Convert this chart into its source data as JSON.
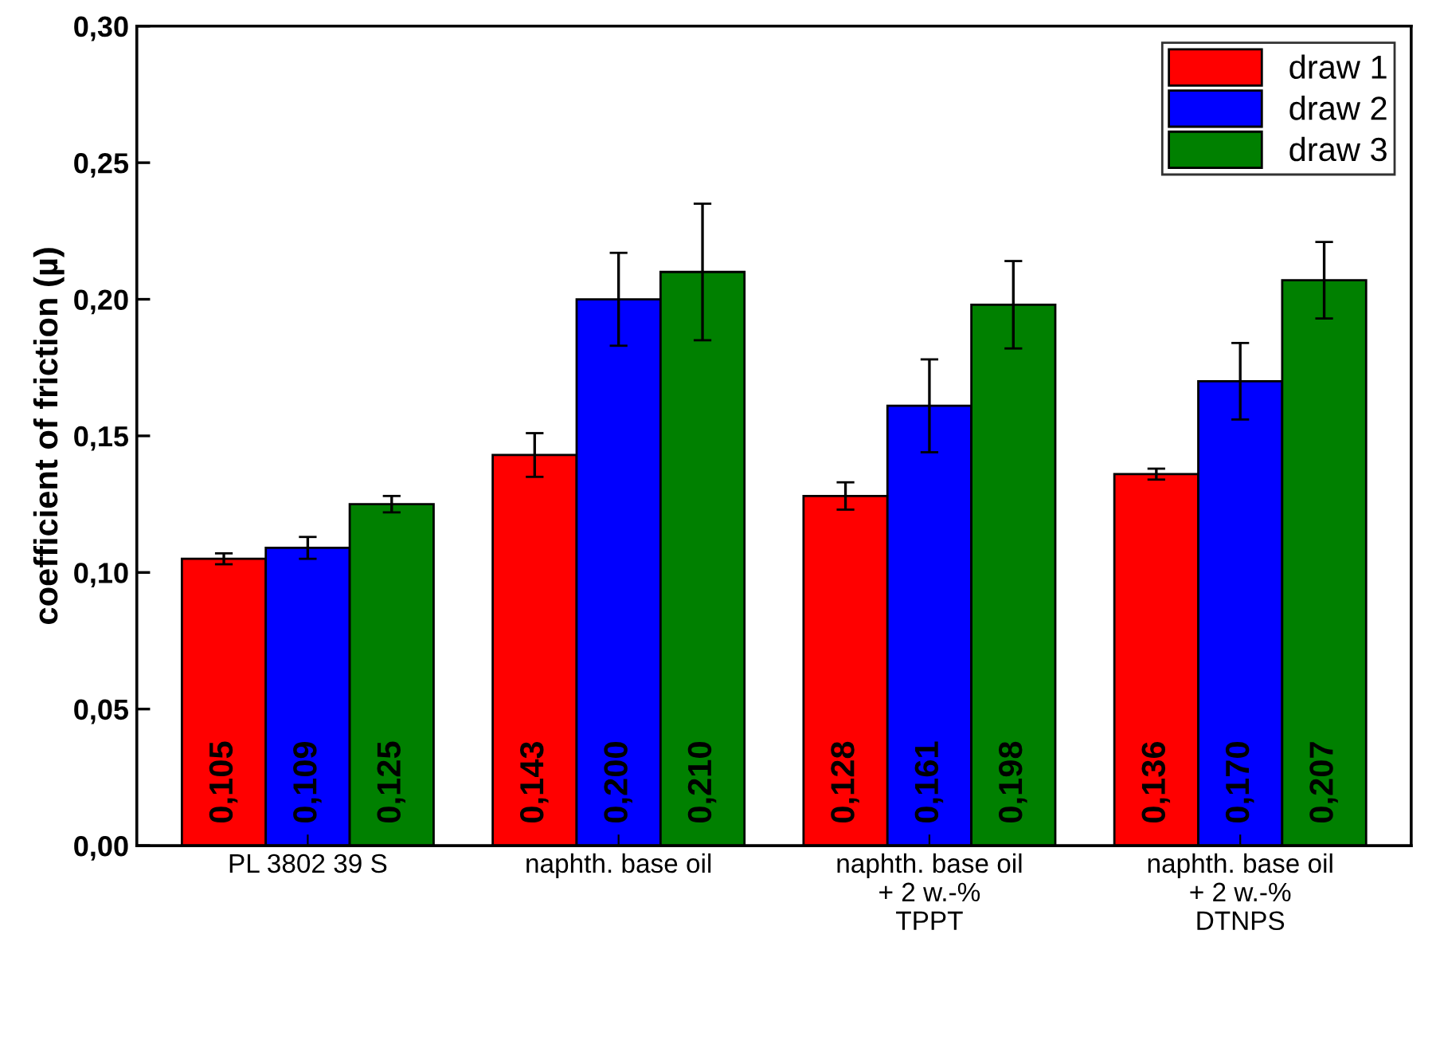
{
  "chart_data": {
    "type": "bar",
    "ylabel": "coefficient of friction (µ)",
    "categories": [
      "PL 3802 39 S",
      "naphth. base oil",
      "naphth. base oil\n+ 2 w.-%\nTPPT",
      "naphth. base oil\n+ 2 w.-%\nDTNPS"
    ],
    "series": [
      {
        "name": "draw 1",
        "color": "#ff0000",
        "values": [
          0.105,
          0.143,
          0.128,
          0.136
        ],
        "errors": [
          0.002,
          0.008,
          0.005,
          0.002
        ],
        "value_labels": [
          "0,105",
          "0,143",
          "0,128",
          "0,136"
        ]
      },
      {
        "name": "draw 2",
        "color": "#0000ff",
        "values": [
          0.109,
          0.2,
          0.161,
          0.17
        ],
        "errors": [
          0.004,
          0.017,
          0.017,
          0.014
        ],
        "value_labels": [
          "0,109",
          "0,200",
          "0,161",
          "0,170"
        ]
      },
      {
        "name": "draw 3",
        "color": "#008000",
        "values": [
          0.125,
          0.21,
          0.198,
          0.207
        ],
        "errors": [
          0.003,
          0.025,
          0.016,
          0.014
        ],
        "value_labels": [
          "0,125",
          "0,210",
          "0,198",
          "0,207"
        ]
      }
    ],
    "ylim": [
      0,
      0.3
    ],
    "yticks": [
      {
        "value": 0,
        "label": "0,00"
      },
      {
        "value": 0.05,
        "label": "0,05"
      },
      {
        "value": 0.1,
        "label": "0,10"
      },
      {
        "value": 0.15,
        "label": "0,15"
      },
      {
        "value": 0.2,
        "label": "0,20"
      },
      {
        "value": 0.25,
        "label": "0,25"
      },
      {
        "value": 0.3,
        "label": "0,30"
      }
    ],
    "legend": "top right",
    "grid": false
  }
}
